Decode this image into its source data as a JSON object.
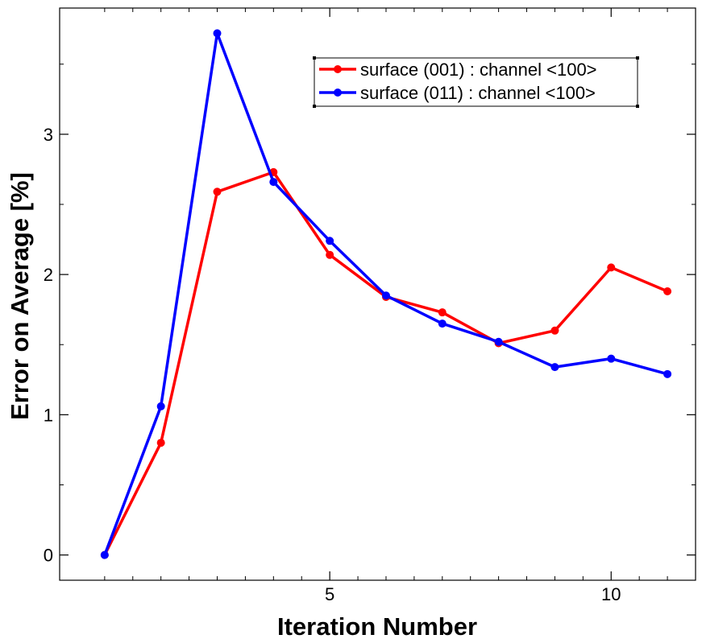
{
  "chart_data": {
    "type": "line",
    "xlabel": "Iteration Number",
    "ylabel": "Error on Average [%]",
    "xlim": [
      0.2,
      11.5
    ],
    "ylim": [
      -0.18,
      3.9
    ],
    "xticks": [
      5,
      10
    ],
    "xtick_labels": [
      "5",
      "10"
    ],
    "x_minor_ticks": [
      1,
      1.5,
      2,
      2.5,
      3,
      3.5,
      4,
      4.5,
      5.5,
      6,
      6.5,
      7,
      7.5,
      8,
      8.5,
      9,
      9.5,
      10.5,
      11
    ],
    "yticks": [
      0,
      1,
      2,
      3
    ],
    "ytick_labels": [
      "0",
      "1",
      "2",
      "3"
    ],
    "y_minor_ticks": [
      0.5,
      1.5,
      2.5,
      3.5
    ],
    "grid": false,
    "legend_position": "top-right",
    "x": [
      1,
      2,
      3,
      4,
      5,
      6,
      7,
      8,
      9,
      10,
      11
    ],
    "series": [
      {
        "name": "surface (001) : channel <100>",
        "color": "#ff0000",
        "values": [
          0.0,
          0.8,
          2.59,
          2.73,
          2.14,
          1.84,
          1.73,
          1.51,
          1.6,
          2.05,
          1.88
        ]
      },
      {
        "name": "surface (011) : channel <100>",
        "color": "#0000ff",
        "values": [
          0.0,
          1.06,
          3.72,
          2.66,
          2.24,
          1.85,
          1.65,
          1.52,
          1.34,
          1.4,
          1.29
        ]
      }
    ]
  }
}
